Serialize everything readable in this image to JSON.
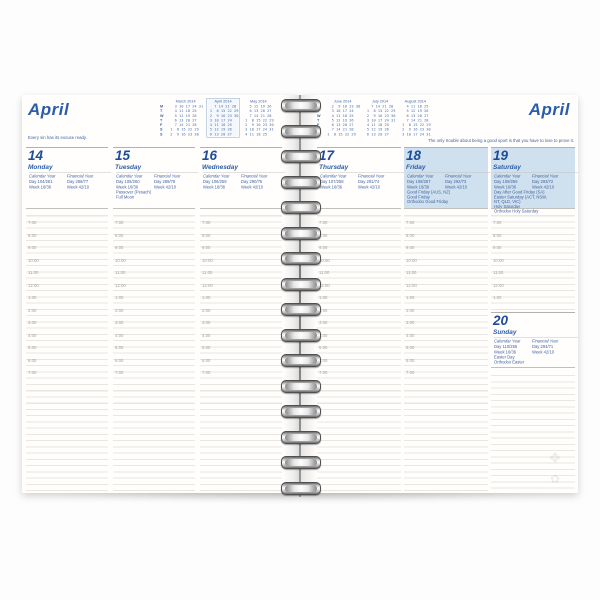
{
  "colors": {
    "accent_blue": "#2b5cab",
    "day_number_blue": "#1e4c9a",
    "text_blue": "#41639f",
    "shade_blue": "#cfe0ee",
    "rule_line": "#eae7e1",
    "time_gray": "#a3a19b"
  },
  "left_page": {
    "title": "April",
    "tagline": "Every sin has its excuse ready."
  },
  "right_page": {
    "title": "April",
    "tagline": "The only trouble about being a good sport is that you have to lose to prove it."
  },
  "weekday_letters": [
    "M",
    "T",
    "W",
    "T",
    "F",
    "S",
    "S"
  ],
  "mini_calendars_left": [
    {
      "title": "March 2014",
      "current": false,
      "rows": [
        "   3 10 17 24 31",
        "   4 11 18 25",
        "   5 12 19 26",
        "   6 13 20 27",
        "   7 14 21 28",
        " 1  8 15 22 29",
        " 2  9 16 23 30"
      ]
    },
    {
      "title": "April 2014",
      "current": true,
      "rows": [
        "   7 14 21 28",
        " 1  8 15 22 29",
        " 2  9 16 23 30",
        " 3 10 17 24",
        " 4 11 18 25",
        " 5 12 19 26",
        " 6 13 20 27"
      ]
    },
    {
      "title": "May 2014",
      "current": false,
      "rows": [
        "   5 12 19 26",
        "   6 13 20 27",
        "   7 14 21 28",
        " 1  8 15 22 29",
        " 2  9 16 23 30",
        " 3 10 17 24 31",
        " 4 11 18 25"
      ]
    }
  ],
  "mini_calendars_right": [
    {
      "title": "June 2014",
      "current": false,
      "rows": [
        "   2  9 16 23 30",
        "   3 10 17 24",
        "   4 11 18 25",
        "   5 12 19 26",
        "   6 13 20 27",
        "   7 14 21 28",
        " 1  8 15 22 29"
      ]
    },
    {
      "title": "July 2014",
      "current": false,
      "rows": [
        "   7 14 21 28",
        " 1  8 15 22 29",
        " 2  9 16 23 30",
        " 3 10 17 24 31",
        " 4 11 18 25",
        " 5 12 19 26",
        " 6 13 20 27"
      ]
    },
    {
      "title": "August 2014",
      "current": false,
      "rows": [
        "   4 11 18 25",
        "   5 12 19 26",
        "   6 13 20 27",
        "   7 14 21 28",
        " 1  8 15 22 29",
        " 2  9 16 23 30",
        " 3 10 17 24 31"
      ]
    }
  ],
  "stats_labels": {
    "calendar": "Calendar Year",
    "financial": "Financial Year"
  },
  "times": [
    "7:00",
    "8:00",
    "9:00",
    "10:00",
    "11:00",
    "12:00",
    "1:00",
    "2:00",
    "3:00",
    "4:00",
    "5:00",
    "6:00",
    "7:00"
  ],
  "days": [
    {
      "number": "14",
      "name": "Monday",
      "shaded": false,
      "page": "left",
      "calendar": {
        "day": "Day 104/261",
        "week": "Week 16/36"
      },
      "financial": {
        "day": "Day 288/77",
        "week": "Week 42/10"
      },
      "notes": []
    },
    {
      "number": "15",
      "name": "Tuesday",
      "shaded": false,
      "page": "left",
      "calendar": {
        "day": "Day 105/260",
        "week": "Week 16/36"
      },
      "financial": {
        "day": "Day 289/76",
        "week": "Week 42/10"
      },
      "notes": [
        "Passover (Pesach)",
        "Full Moon"
      ]
    },
    {
      "number": "16",
      "name": "Wednesday",
      "shaded": false,
      "page": "left",
      "calendar": {
        "day": "Day 106/259",
        "week": "Week 16/36"
      },
      "financial": {
        "day": "Day 290/75",
        "week": "Week 42/10"
      },
      "notes": []
    },
    {
      "number": "17",
      "name": "Thursday",
      "shaded": false,
      "page": "right",
      "calendar": {
        "day": "Day 107/258",
        "week": "Week 16/36"
      },
      "financial": {
        "day": "Day 291/74",
        "week": "Week 42/10"
      },
      "notes": []
    },
    {
      "number": "18",
      "name": "Friday",
      "shaded": true,
      "page": "right",
      "calendar": {
        "day": "Day 108/257",
        "week": "Week 16/36"
      },
      "financial": {
        "day": "Day 292/73",
        "week": "Week 42/10"
      },
      "notes": [
        "Good Friday (AUS, NZ)",
        "Good Friday",
        "Orthodox Good Friday"
      ]
    },
    {
      "number": "19",
      "name": "Saturday",
      "shaded": true,
      "page": "right",
      "calendar": {
        "day": "Day 109/256",
        "week": "Week 16/36"
      },
      "financial": {
        "day": "Day 293/72",
        "week": "Week 42/10"
      },
      "notes": [
        "Day After Good Friday (SA)",
        "Easter Saturday (ACT, NSW,",
        "NT, QLD, VIC)",
        "Holy Saturday",
        "Orthodox Holy Saturday"
      ],
      "sunday": {
        "number": "20",
        "name": "Sunday",
        "calendar": {
          "day": "Day 110/255",
          "week": "Week 16/36"
        },
        "financial": {
          "day": "Day 294/71",
          "week": "Week 42/10"
        },
        "notes": [
          "Easter Day",
          "Orthodox Easter"
        ]
      }
    }
  ]
}
